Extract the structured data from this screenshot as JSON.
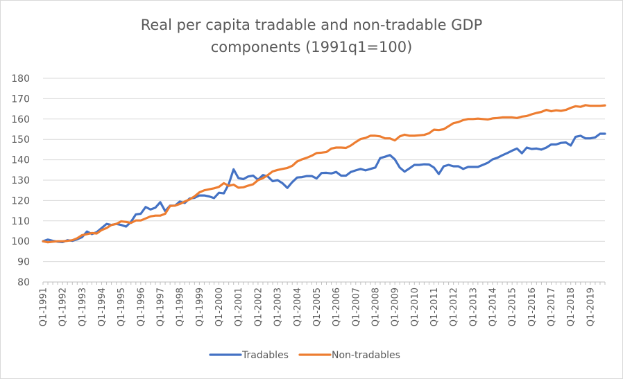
{
  "chart_data": {
    "type": "line",
    "title_lines": [
      "Real per capita tradable and non-tradable GDP",
      "components (1991q1=100)"
    ],
    "xlabel": "",
    "ylabel": "",
    "ylim": [
      80,
      180
    ],
    "yticks": [
      "80",
      "90",
      "100",
      "110",
      "120",
      "130",
      "140",
      "150",
      "160",
      "170",
      "180"
    ],
    "x_tick_labels": [
      "Q1-1991",
      "Q1-1992",
      "Q1-1993",
      "Q1-1994",
      "Q1-1995",
      "Q1-1996",
      "Q1-1997",
      "Q1-1998",
      "Q1-1999",
      "Q1-2000",
      "Q1-2001",
      "Q1-2002",
      "Q1-2003",
      "Q1-2004",
      "Q1-2005",
      "Q1-2006",
      "Q1-2007",
      "Q1-2008",
      "Q1-2009",
      "Q1-2010",
      "Q1-2011",
      "Q1-2012",
      "Q1-2013",
      "Q1-2014",
      "Q1-2015",
      "Q1-2016",
      "Q1-2017",
      "Q1-2018",
      "Q1-2019"
    ],
    "grid": true,
    "legend_position": "bottom",
    "series": [
      {
        "name": "Tradables",
        "color": "#4472c4",
        "anchors": [
          [
            1991.0,
            100
          ],
          [
            1991.25,
            100.8
          ],
          [
            1991.5,
            100.2
          ],
          [
            1991.75,
            99.8
          ],
          [
            1992.0,
            99.6
          ],
          [
            1992.25,
            100.5
          ],
          [
            1992.5,
            100.2
          ],
          [
            1992.75,
            101
          ],
          [
            1993.0,
            102
          ],
          [
            1993.25,
            104.8
          ],
          [
            1993.5,
            103.5
          ],
          [
            1993.75,
            104.5
          ],
          [
            1994.0,
            106.5
          ],
          [
            1994.25,
            108.5
          ],
          [
            1994.5,
            108
          ],
          [
            1994.75,
            108.5
          ],
          [
            1995.0,
            108
          ],
          [
            1995.25,
            107.2
          ],
          [
            1995.5,
            109.5
          ],
          [
            1995.75,
            113.2
          ],
          [
            1996.0,
            113.5
          ],
          [
            1996.25,
            116.8
          ],
          [
            1996.5,
            115.6
          ],
          [
            1996.75,
            116.5
          ],
          [
            1997.0,
            119.2
          ],
          [
            1997.25,
            114.8
          ],
          [
            1997.5,
            117.5
          ],
          [
            1997.75,
            117.5
          ],
          [
            1998.0,
            119.5
          ],
          [
            1998.25,
            118.8
          ],
          [
            1998.5,
            121
          ],
          [
            1998.75,
            121.3
          ],
          [
            1999.0,
            122.5
          ],
          [
            1999.25,
            122.5
          ],
          [
            1999.5,
            122
          ],
          [
            1999.75,
            121.2
          ],
          [
            2000.0,
            123.8
          ],
          [
            2000.25,
            123.5
          ],
          [
            2000.5,
            128
          ],
          [
            2000.75,
            135.3
          ],
          [
            2001.0,
            131
          ],
          [
            2001.25,
            130.5
          ],
          [
            2001.5,
            131.8
          ],
          [
            2001.75,
            132.2
          ],
          [
            2002.0,
            130.2
          ],
          [
            2002.25,
            132.5
          ],
          [
            2002.5,
            131.8
          ],
          [
            2002.75,
            129.5
          ],
          [
            2003.0,
            130
          ],
          [
            2003.25,
            128.5
          ],
          [
            2003.5,
            126.2
          ],
          [
            2003.75,
            129
          ],
          [
            2004.0,
            131.3
          ],
          [
            2004.25,
            131.5
          ],
          [
            2004.5,
            132
          ],
          [
            2004.75,
            132
          ],
          [
            2005.0,
            130.8
          ],
          [
            2005.25,
            133.5
          ],
          [
            2005.5,
            133.6
          ],
          [
            2005.75,
            133.3
          ],
          [
            2006.0,
            134
          ],
          [
            2006.25,
            132.2
          ],
          [
            2006.5,
            132.2
          ],
          [
            2006.75,
            134
          ],
          [
            2007.0,
            134.8
          ],
          [
            2007.25,
            135.5
          ],
          [
            2007.5,
            134.8
          ],
          [
            2007.75,
            135.5
          ],
          [
            2008.0,
            136.2
          ],
          [
            2008.25,
            140.8
          ],
          [
            2008.5,
            141.5
          ],
          [
            2008.75,
            142.3
          ],
          [
            2009.0,
            140.2
          ],
          [
            2009.25,
            136.2
          ],
          [
            2009.5,
            134.2
          ],
          [
            2009.75,
            135.8
          ],
          [
            2010.0,
            137.5
          ],
          [
            2010.25,
            137.5
          ],
          [
            2010.5,
            137.8
          ],
          [
            2010.75,
            137.7
          ],
          [
            2011.0,
            136.2
          ],
          [
            2011.25,
            133
          ],
          [
            2011.5,
            136.8
          ],
          [
            2011.75,
            137.5
          ],
          [
            2012.0,
            136.8
          ],
          [
            2012.25,
            136.8
          ],
          [
            2012.5,
            135.5
          ],
          [
            2012.75,
            136.5
          ],
          [
            2013.0,
            136.5
          ],
          [
            2013.25,
            136.5
          ],
          [
            2013.5,
            137.5
          ],
          [
            2013.75,
            138.5
          ],
          [
            2014.0,
            140.2
          ],
          [
            2014.25,
            141
          ],
          [
            2014.5,
            142.2
          ],
          [
            2014.75,
            143.3
          ],
          [
            2015.0,
            144.5
          ],
          [
            2015.25,
            145.5
          ],
          [
            2015.5,
            143.2
          ],
          [
            2015.75,
            146
          ],
          [
            2016.0,
            145.3
          ],
          [
            2016.25,
            145.5
          ],
          [
            2016.5,
            145
          ],
          [
            2016.75,
            146
          ],
          [
            2017.0,
            147.5
          ],
          [
            2017.25,
            147.5
          ],
          [
            2017.5,
            148.3
          ],
          [
            2017.75,
            148.5
          ],
          [
            2018.0,
            147
          ],
          [
            2018.25,
            151.3
          ],
          [
            2018.5,
            151.8
          ],
          [
            2018.75,
            150.5
          ],
          [
            2019.0,
            150.5
          ],
          [
            2019.25,
            151
          ],
          [
            2019.5,
            152.8
          ],
          [
            2019.75,
            152.8
          ]
        ]
      },
      {
        "name": "Non-tradables",
        "color": "#ed7d31",
        "anchors": [
          [
            1991.0,
            100
          ],
          [
            1991.25,
            99.5
          ],
          [
            1991.5,
            99.8
          ],
          [
            1991.75,
            100
          ],
          [
            1992.0,
            100
          ],
          [
            1992.25,
            100.2
          ],
          [
            1992.5,
            100.5
          ],
          [
            1992.75,
            101.5
          ],
          [
            1993.0,
            103
          ],
          [
            1993.25,
            103.5
          ],
          [
            1993.5,
            104
          ],
          [
            1993.75,
            103.8
          ],
          [
            1994.0,
            105.5
          ],
          [
            1994.25,
            106.5
          ],
          [
            1994.5,
            108
          ],
          [
            1994.75,
            108.5
          ],
          [
            1995.0,
            109.8
          ],
          [
            1995.25,
            109.5
          ],
          [
            1995.5,
            109
          ],
          [
            1995.75,
            110.2
          ],
          [
            1996.0,
            110.2
          ],
          [
            1996.25,
            111.2
          ],
          [
            1996.5,
            112.2
          ],
          [
            1996.75,
            112.6
          ],
          [
            1997.0,
            112.6
          ],
          [
            1997.25,
            113.5
          ],
          [
            1997.5,
            117.3
          ],
          [
            1997.75,
            117.5
          ],
          [
            1998.0,
            118.3
          ],
          [
            1998.25,
            119.5
          ],
          [
            1998.5,
            120.5
          ],
          [
            1998.75,
            122
          ],
          [
            1999.0,
            124
          ],
          [
            1999.25,
            125
          ],
          [
            1999.5,
            125.5
          ],
          [
            1999.75,
            126
          ],
          [
            2000.0,
            126.7
          ],
          [
            2000.25,
            128.5
          ],
          [
            2000.5,
            127.2
          ],
          [
            2000.75,
            127.8
          ],
          [
            2001.0,
            126.3
          ],
          [
            2001.25,
            126.5
          ],
          [
            2001.5,
            127.3
          ],
          [
            2001.75,
            128
          ],
          [
            2002.0,
            130
          ],
          [
            2002.25,
            131
          ],
          [
            2002.5,
            132.5
          ],
          [
            2002.75,
            134.3
          ],
          [
            2003.0,
            135
          ],
          [
            2003.25,
            135.5
          ],
          [
            2003.5,
            136
          ],
          [
            2003.75,
            137
          ],
          [
            2004.0,
            139.2
          ],
          [
            2004.25,
            140.2
          ],
          [
            2004.5,
            141
          ],
          [
            2004.75,
            142
          ],
          [
            2005.0,
            143.3
          ],
          [
            2005.25,
            143.5
          ],
          [
            2005.5,
            143.8
          ],
          [
            2005.75,
            145.5
          ],
          [
            2006.0,
            146
          ],
          [
            2006.25,
            146
          ],
          [
            2006.5,
            145.8
          ],
          [
            2006.75,
            147
          ],
          [
            2007.0,
            148.7
          ],
          [
            2007.25,
            150.2
          ],
          [
            2007.5,
            150.7
          ],
          [
            2007.75,
            151.8
          ],
          [
            2008.0,
            151.8
          ],
          [
            2008.25,
            151.5
          ],
          [
            2008.5,
            150.5
          ],
          [
            2008.75,
            150.5
          ],
          [
            2009.0,
            149.5
          ],
          [
            2009.25,
            151.5
          ],
          [
            2009.5,
            152.3
          ],
          [
            2009.75,
            151.8
          ],
          [
            2010.0,
            151.8
          ],
          [
            2010.25,
            152
          ],
          [
            2010.5,
            152.2
          ],
          [
            2010.75,
            153
          ],
          [
            2011.0,
            154.8
          ],
          [
            2011.25,
            154.6
          ],
          [
            2011.5,
            155
          ],
          [
            2011.75,
            156.5
          ],
          [
            2012.0,
            158
          ],
          [
            2012.25,
            158.5
          ],
          [
            2012.5,
            159.5
          ],
          [
            2012.75,
            160
          ],
          [
            2013.0,
            160
          ],
          [
            2013.25,
            160.2
          ],
          [
            2013.5,
            160
          ],
          [
            2013.75,
            159.8
          ],
          [
            2014.0,
            160.3
          ],
          [
            2014.25,
            160.5
          ],
          [
            2014.5,
            160.8
          ],
          [
            2014.75,
            160.8
          ],
          [
            2015.0,
            160.8
          ],
          [
            2015.25,
            160.5
          ],
          [
            2015.5,
            161.2
          ],
          [
            2015.75,
            161.5
          ],
          [
            2016.0,
            162.3
          ],
          [
            2016.25,
            163
          ],
          [
            2016.5,
            163.5
          ],
          [
            2016.75,
            164.5
          ],
          [
            2017.0,
            163.8
          ],
          [
            2017.25,
            164.3
          ],
          [
            2017.5,
            164
          ],
          [
            2017.75,
            164.5
          ],
          [
            2018.0,
            165.5
          ],
          [
            2018.25,
            166.3
          ],
          [
            2018.5,
            166
          ],
          [
            2018.75,
            166.8
          ],
          [
            2019.0,
            166.5
          ],
          [
            2019.25,
            166.5
          ],
          [
            2019.5,
            166.5
          ],
          [
            2019.75,
            166.7
          ]
        ]
      }
    ]
  }
}
